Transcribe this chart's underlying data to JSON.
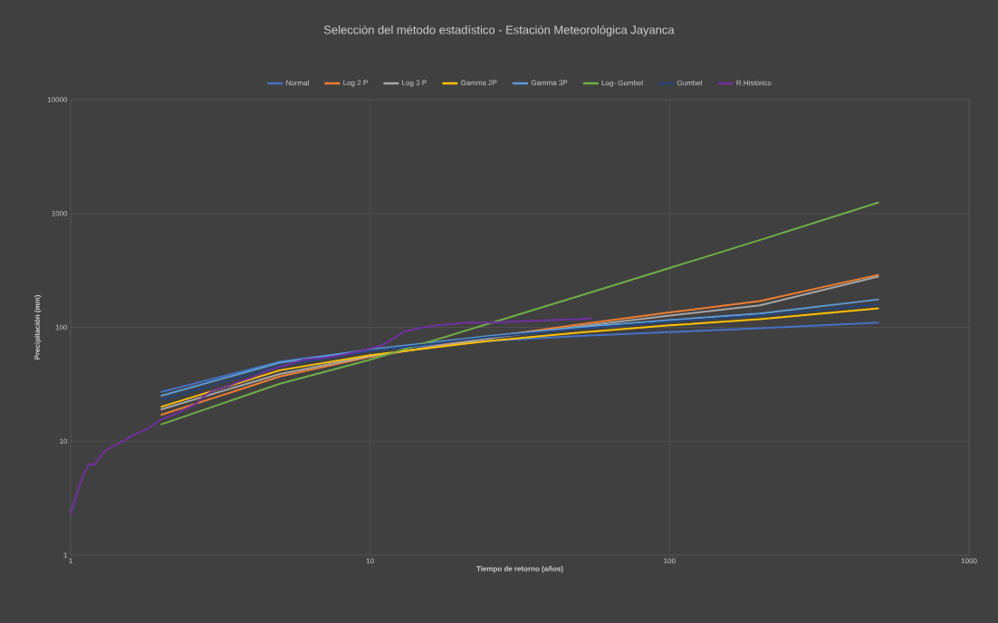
{
  "chart_data": {
    "type": "line",
    "title": "Selección del método estadístico - Estación Meteorológica Jayanca",
    "xlabel": "Tiempo de retorno (años)",
    "ylabel": "Precipitación (mm)",
    "log": "xy",
    "grid": true,
    "legend": "top",
    "marker": "none",
    "line_style": "solid",
    "xlim": [
      1,
      1000
    ],
    "ylim": [
      1,
      10000
    ],
    "xticks": [
      1,
      10,
      100,
      1000
    ],
    "yticks": [
      1,
      10,
      100,
      1000,
      10000
    ],
    "series": [
      {
        "name": "Normal",
        "color": "#4472c4",
        "x": [
          2,
          5,
          10,
          25,
          50,
          100,
          200,
          500
        ],
        "values": [
          27,
          50,
          63,
          76,
          84,
          91,
          98,
          110
        ]
      },
      {
        "name": "Log 2 P",
        "color": "#ed7d31",
        "x": [
          2,
          5,
          10,
          25,
          50,
          100,
          200,
          500
        ],
        "values": [
          17,
          37,
          55,
          82,
          106,
          135,
          170,
          290
        ]
      },
      {
        "name": "Log 3 P",
        "color": "#a5a5a5",
        "x": [
          2,
          5,
          10,
          25,
          50,
          100,
          200,
          500
        ],
        "values": [
          19,
          39,
          56,
          80,
          102,
          127,
          156,
          280
        ]
      },
      {
        "name": "Gamma 2P",
        "color": "#ffc000",
        "x": [
          2,
          5,
          10,
          25,
          50,
          100,
          200,
          500
        ],
        "values": [
          20,
          42,
          57,
          76,
          90,
          104,
          118,
          147
        ]
      },
      {
        "name": "Gamma 3P",
        "color": "#5b9bd5",
        "x": [
          2,
          5,
          10,
          25,
          50,
          100,
          200,
          500
        ],
        "values": [
          25,
          49,
          64,
          84,
          100,
          116,
          132,
          176
        ]
      },
      {
        "name": "Log- Gumbel",
        "color": "#70ad47",
        "x": [
          2,
          5,
          10,
          25,
          50,
          100,
          200,
          500
        ],
        "values": [
          14,
          32,
          52,
          108,
          189,
          332,
          584,
          1250
        ]
      },
      {
        "name": "Gumbel",
        "color": "#264478",
        "x": [
          2,
          5,
          10,
          25,
          50,
          100,
          200,
          500
        ],
        "values": [
          23,
          46,
          62,
          82,
          97,
          112,
          127,
          160
        ]
      },
      {
        "name": "R.Histórico",
        "color": "#7030a0",
        "x": [
          1,
          1.05,
          1.1,
          1.15,
          1.2,
          1.25,
          1.3,
          1.4,
          1.5,
          1.6,
          1.7,
          1.8,
          1.9,
          2,
          2.2,
          2.4,
          2.6,
          2.8,
          3,
          3.3,
          3.6,
          4,
          4.5,
          5,
          6,
          7,
          8,
          9,
          10,
          11,
          12,
          13,
          15,
          18,
          21,
          25,
          30,
          35,
          40,
          50,
          55
        ],
        "values": [
          2.3,
          3.5,
          5,
          6.3,
          6.2,
          7.2,
          8.2,
          9.2,
          10,
          11.2,
          12,
          12.8,
          14,
          15.5,
          17,
          19,
          21,
          25,
          28,
          30,
          33,
          36,
          41,
          45,
          52,
          54,
          57,
          61,
          65,
          70,
          80,
          92,
          100,
          106,
          110,
          110,
          112,
          114,
          116,
          118,
          120
        ]
      }
    ]
  }
}
